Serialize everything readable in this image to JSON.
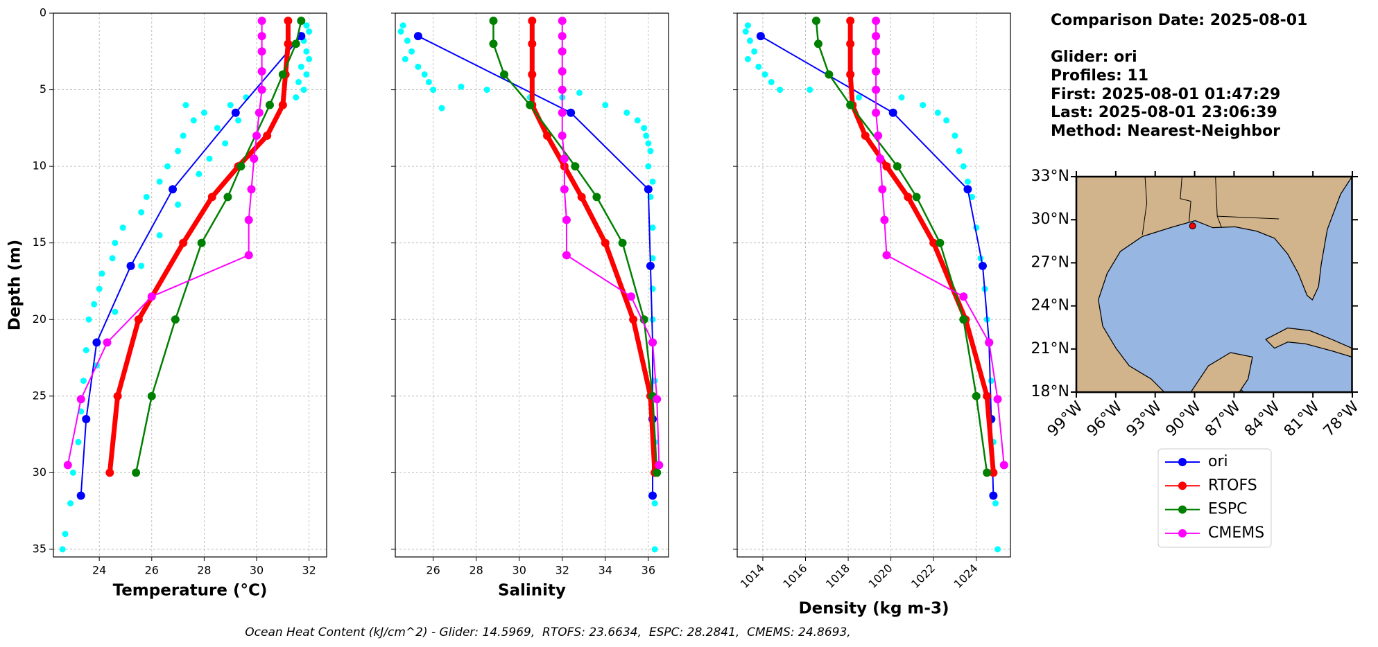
{
  "chart_data": [
    {
      "type": "profile",
      "xlabel": "Temperature (°C)",
      "ylabel": "Depth (m)",
      "xlim": [
        22.25,
        32.67
      ],
      "xticks": [
        24,
        26,
        28,
        30,
        32
      ],
      "ylim": [
        0,
        35.5
      ],
      "yticks": [
        0,
        5,
        10,
        15,
        20,
        25,
        30,
        35
      ],
      "y_inverted": true,
      "grid": true,
      "series": [
        {
          "color": "#00ffff",
          "x": [
            31.9,
            32.0,
            31.8,
            31.9,
            32.0,
            31.7,
            31.9,
            31.6,
            31.8,
            31.5,
            29.6,
            27.3,
            29.0,
            28.0,
            27.6,
            29.3,
            28.5,
            27.2,
            28.8,
            27.0,
            28.2,
            26.6,
            27.8,
            26.3,
            25.8,
            27.0,
            25.6,
            24.9,
            26.3,
            24.6,
            24.5,
            25.6,
            24.1,
            24.0,
            23.8,
            24.6,
            23.6,
            23.5,
            23.9,
            23.4,
            23.3,
            23.2,
            23.0,
            22.9,
            22.7,
            22.6
          ],
          "y": [
            0.8,
            1.2,
            1.8,
            2.5,
            3.0,
            3.5,
            4.0,
            4.5,
            5.0,
            5.5,
            5.5,
            6.0,
            6.0,
            6.5,
            7.0,
            7.0,
            7.5,
            8.0,
            8.5,
            9.0,
            9.5,
            10.0,
            10.5,
            11.0,
            12.0,
            12.5,
            13.0,
            14.0,
            14.5,
            15.0,
            16.0,
            16.5,
            17.0,
            18.0,
            19.0,
            19.5,
            20.0,
            22.0,
            23.0,
            24.0,
            26.0,
            28.0,
            30.0,
            32.0,
            34.0,
            35.0
          ]
        },
        {
          "name": "ori",
          "color": "#0000ff",
          "x": [
            31.7,
            29.2,
            26.8,
            25.2,
            23.9,
            23.5,
            23.3
          ],
          "y": [
            1.5,
            6.5,
            11.5,
            16.5,
            21.5,
            26.5,
            31.5
          ]
        },
        {
          "name": "RTOFS",
          "color": "#ff0000",
          "x": [
            31.2,
            31.2,
            31.1,
            31.0,
            30.4,
            29.3,
            28.3,
            27.2,
            25.5,
            24.7,
            24.4
          ],
          "y": [
            0.5,
            2,
            4,
            6,
            8,
            10,
            12,
            15,
            20,
            25,
            30
          ]
        },
        {
          "name": "ESPC",
          "color": "#008000",
          "x": [
            31.7,
            31.5,
            31.0,
            30.5,
            29.4,
            28.9,
            27.9,
            26.9,
            26.0,
            25.4
          ],
          "y": [
            0.5,
            2,
            4,
            6,
            10,
            12,
            15,
            20,
            25,
            30
          ]
        },
        {
          "name": "CMEMS",
          "color": "#ff00ff",
          "x": [
            30.2,
            30.2,
            30.2,
            30.2,
            30.2,
            30.1,
            30.0,
            29.9,
            29.8,
            29.7,
            29.7,
            26.0,
            24.3,
            23.3,
            22.8
          ],
          "y": [
            0.5,
            1.5,
            2.5,
            3.8,
            5,
            6.5,
            8,
            9.5,
            11.5,
            13.5,
            15.8,
            18.5,
            21.5,
            25.2,
            29.5
          ]
        }
      ]
    },
    {
      "type": "profile",
      "xlabel": "Salinity",
      "xlim": [
        24.24,
        36.94
      ],
      "xticks": [
        26,
        28,
        30,
        32,
        34,
        36
      ],
      "ylim": [
        0,
        35.5
      ],
      "yticks": [
        0,
        5,
        10,
        15,
        20,
        25,
        30,
        35
      ],
      "y_inverted": true,
      "grid": true,
      "series": [
        {
          "color": "#00ffff",
          "x": [
            24.6,
            24.5,
            24.8,
            25.0,
            24.7,
            25.3,
            25.6,
            25.8,
            27.3,
            26.0,
            28.5,
            32.8,
            30.5,
            32.0,
            34.0,
            26.4,
            35.0,
            35.5,
            35.8,
            35.9,
            36.0,
            36.1,
            36.0,
            36.2,
            36.1,
            36.2,
            36.2,
            36.2,
            36.2,
            36.3,
            36.3,
            36.3,
            36.3
          ],
          "y": [
            0.8,
            1.2,
            1.8,
            2.5,
            3.0,
            3.5,
            4.0,
            4.5,
            4.8,
            5.0,
            5.0,
            5.2,
            5.5,
            5.5,
            6.0,
            6.2,
            6.5,
            7.0,
            7.5,
            8.0,
            8.5,
            9.0,
            10.0,
            11.0,
            12.0,
            14.0,
            16.0,
            18.0,
            20.0,
            24.0,
            28.0,
            32.0,
            35.0
          ]
        },
        {
          "name": "ori",
          "color": "#0000ff",
          "x": [
            25.3,
            32.4,
            36.0,
            36.1,
            36.2,
            36.2,
            36.2
          ],
          "y": [
            1.5,
            6.5,
            11.5,
            16.5,
            21.5,
            26.5,
            31.5
          ]
        },
        {
          "name": "RTOFS",
          "color": "#ff0000",
          "x": [
            30.6,
            30.6,
            30.6,
            30.6,
            31.3,
            32.1,
            32.9,
            34.0,
            35.3,
            36.1,
            36.3
          ],
          "y": [
            0.5,
            2,
            4,
            6,
            8,
            10,
            12,
            15,
            20,
            25,
            30
          ]
        },
        {
          "name": "ESPC",
          "color": "#008000",
          "x": [
            28.8,
            28.8,
            29.3,
            30.5,
            32.6,
            33.6,
            34.8,
            35.8,
            36.2,
            36.4
          ],
          "y": [
            0.5,
            2,
            4,
            6,
            10,
            12,
            15,
            20,
            25,
            30
          ]
        },
        {
          "name": "CMEMS",
          "color": "#ff00ff",
          "x": [
            32.0,
            32.0,
            32.0,
            32.0,
            32.0,
            32.0,
            32.0,
            32.1,
            32.1,
            32.2,
            32.2,
            35.2,
            36.2,
            36.4,
            36.5
          ],
          "y": [
            0.5,
            1.5,
            2.5,
            3.8,
            5,
            6.5,
            8,
            9.5,
            11.5,
            13.5,
            15.8,
            18.5,
            21.5,
            25.2,
            29.5
          ]
        }
      ]
    },
    {
      "type": "profile",
      "xlabel": "Density (kg m-3)",
      "xtick_rotation": 45,
      "xlim": [
        1012.8,
        1025.6
      ],
      "xticks": [
        1014,
        1016,
        1018,
        1020,
        1022,
        1024
      ],
      "ylim": [
        0,
        35.5
      ],
      "yticks": [
        0,
        5,
        10,
        15,
        20,
        25,
        30,
        35
      ],
      "y_inverted": true,
      "grid": true,
      "series": [
        {
          "color": "#00ffff",
          "x": [
            1013.3,
            1013.2,
            1013.4,
            1013.6,
            1013.3,
            1013.8,
            1014.1,
            1014.4,
            1014.8,
            1016.2,
            1018.5,
            1020.5,
            1021.5,
            1022.2,
            1022.6,
            1023.0,
            1023.2,
            1023.4,
            1023.6,
            1023.8,
            1024.0,
            1024.2,
            1024.4,
            1024.5,
            1024.7,
            1024.8,
            1024.9,
            1025.0
          ],
          "y": [
            0.8,
            1.2,
            1.8,
            2.5,
            3.0,
            3.5,
            4.0,
            4.5,
            5.0,
            5.0,
            5.5,
            5.5,
            6.0,
            6.5,
            7.0,
            8.0,
            9.0,
            10.0,
            11.0,
            12.0,
            14.0,
            16.0,
            18.0,
            20.0,
            24.0,
            28.0,
            32.0,
            35.0
          ]
        },
        {
          "name": "ori",
          "color": "#0000ff",
          "x": [
            1013.9,
            1020.1,
            1023.6,
            1024.3,
            1024.6,
            1024.7,
            1024.8
          ],
          "y": [
            1.5,
            6.5,
            11.5,
            16.5,
            21.5,
            26.5,
            31.5
          ]
        },
        {
          "name": "RTOFS",
          "color": "#ff0000",
          "x": [
            1018.1,
            1018.1,
            1018.1,
            1018.2,
            1018.8,
            1019.8,
            1020.8,
            1022.0,
            1023.5,
            1024.5,
            1024.8
          ],
          "y": [
            0.5,
            2,
            4,
            6,
            8,
            10,
            12,
            15,
            20,
            25,
            30
          ]
        },
        {
          "name": "ESPC",
          "color": "#008000",
          "x": [
            1016.5,
            1016.6,
            1017.1,
            1018.1,
            1020.3,
            1021.2,
            1022.3,
            1023.4,
            1024.0,
            1024.5
          ],
          "y": [
            0.5,
            2,
            4,
            6,
            10,
            12,
            15,
            20,
            25,
            30
          ]
        },
        {
          "name": "CMEMS",
          "color": "#ff00ff",
          "x": [
            1019.3,
            1019.3,
            1019.3,
            1019.3,
            1019.3,
            1019.3,
            1019.4,
            1019.5,
            1019.6,
            1019.7,
            1019.8,
            1023.4,
            1024.6,
            1025.0,
            1025.3
          ],
          "y": [
            0.5,
            1.5,
            2.5,
            3.8,
            5,
            6.5,
            8,
            9.5,
            11.5,
            13.5,
            15.8,
            18.5,
            21.5,
            25.2,
            29.5
          ]
        }
      ]
    }
  ],
  "info": {
    "heading": "Comparison Date: 2025-08-01",
    "lines": [
      "Glider: ori",
      "Profiles: 11",
      "First: 2025-08-01 01:47:29",
      "Last: 2025-08-01 23:06:39",
      "Method: Nearest-Neighbor"
    ]
  },
  "map": {
    "lat_labels": [
      "33°N",
      "30°N",
      "27°N",
      "24°N",
      "21°N",
      "18°N"
    ],
    "lon_labels": [
      "99°W",
      "96°W",
      "93°W",
      "90°W",
      "87°W",
      "84°W",
      "81°W",
      "78°W"
    ]
  },
  "footer": "Ocean Heat Content (kJ/cm^2) - Glider: 14.5969,  RTOFS: 23.6634,  ESPC: 28.2841,  CMEMS: 24.8693,"
}
